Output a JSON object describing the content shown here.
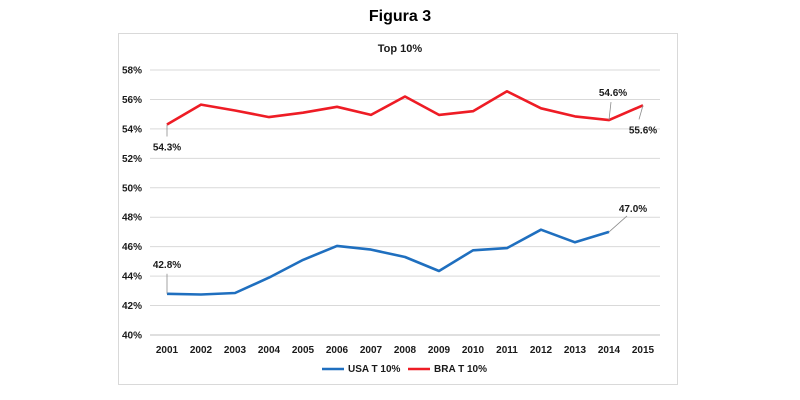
{
  "figure_title": "Figura 3",
  "chart_data": {
    "type": "line",
    "title": "Top 10%",
    "xlabel": "",
    "ylabel": "",
    "x": [
      "2001",
      "2002",
      "2003",
      "2004",
      "2005",
      "2006",
      "2007",
      "2008",
      "2009",
      "2010",
      "2011",
      "2012",
      "2013",
      "2014",
      "2015"
    ],
    "ylim": [
      40,
      58
    ],
    "yticks": [
      "40%",
      "42%",
      "44%",
      "46%",
      "48%",
      "50%",
      "52%",
      "54%",
      "56%",
      "58%"
    ],
    "grid": true,
    "legend_position": "bottom",
    "series": [
      {
        "name": "USA T 10%",
        "color": "#1f6fbf",
        "values": [
          42.8,
          42.75,
          42.85,
          43.9,
          45.1,
          46.05,
          45.8,
          45.3,
          44.35,
          45.75,
          45.9,
          47.15,
          46.3,
          47.0,
          null
        ]
      },
      {
        "name": "BRA T 10%",
        "color": "#ee1c25",
        "values": [
          54.3,
          55.65,
          55.25,
          54.8,
          55.1,
          55.5,
          54.95,
          56.2,
          54.95,
          55.2,
          56.55,
          55.4,
          54.85,
          54.6,
          55.6
        ]
      }
    ],
    "annotations": [
      {
        "series": 0,
        "index": 0,
        "label": "42.8%"
      },
      {
        "series": 0,
        "index": 13,
        "label": "47.0%"
      },
      {
        "series": 1,
        "index": 0,
        "label": "54.3%"
      },
      {
        "series": 1,
        "index": 13,
        "label": "54.6%"
      },
      {
        "series": 1,
        "index": 14,
        "label": "55.6%"
      }
    ]
  }
}
